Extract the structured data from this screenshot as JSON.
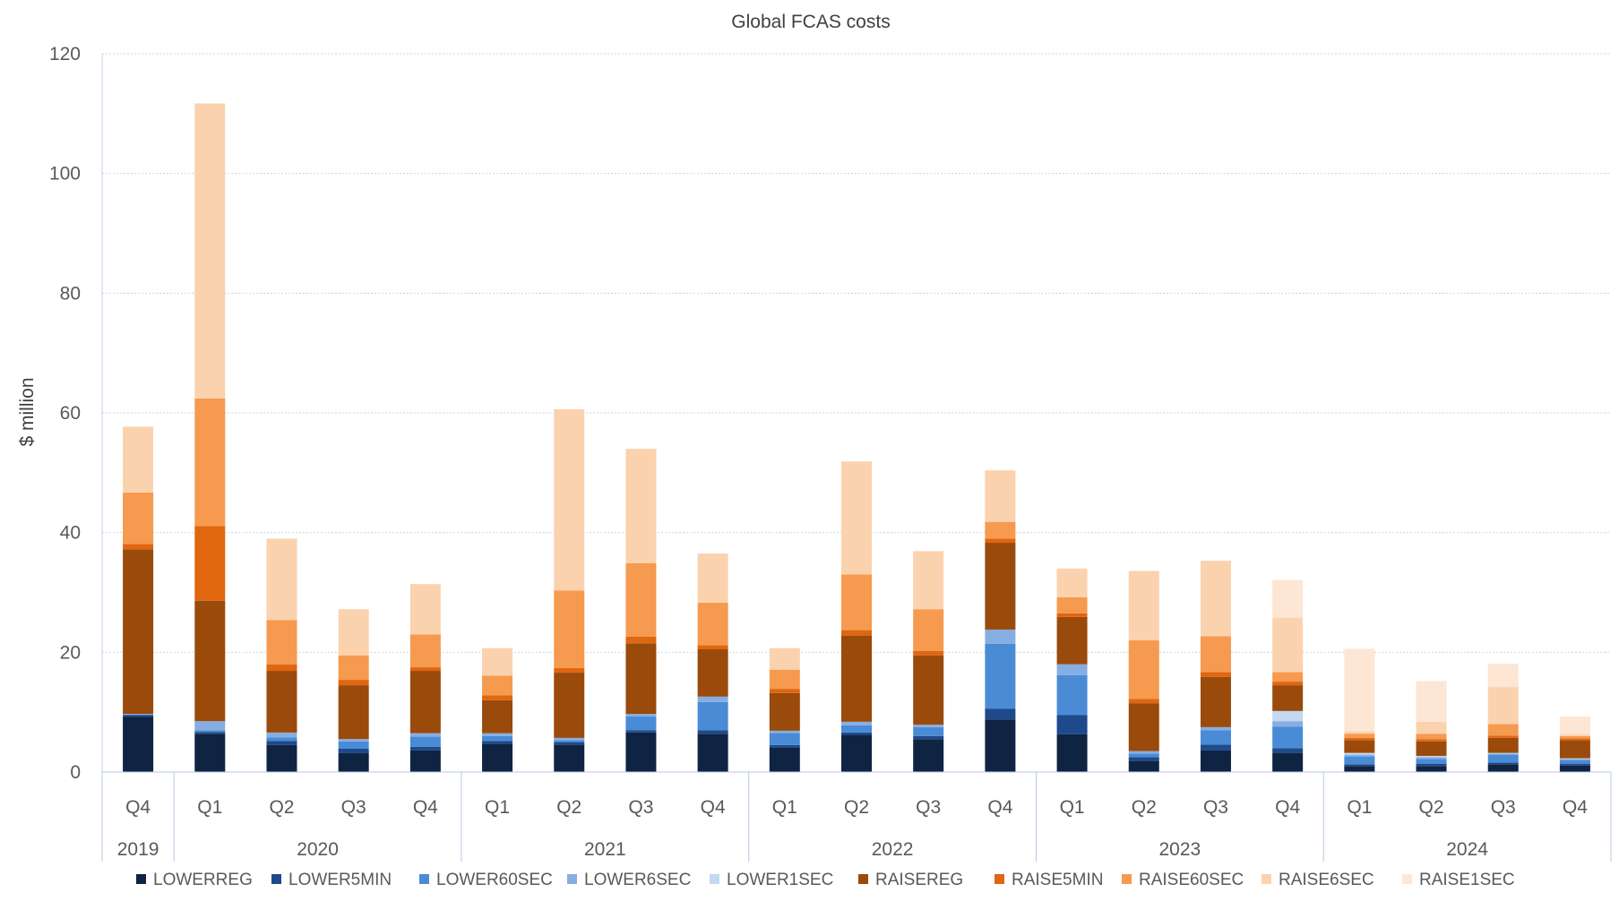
{
  "chart_data": {
    "type": "bar",
    "stacked": true,
    "title": "Global FCAS costs",
    "xlabel": "",
    "ylabel": "$ million",
    "ylim": [
      0,
      120
    ],
    "yticks": [
      0,
      20,
      40,
      60,
      80,
      100,
      120
    ],
    "grid": true,
    "legend_position": "bottom",
    "categories": [
      "Q4",
      "Q1",
      "Q2",
      "Q3",
      "Q4",
      "Q1",
      "Q2",
      "Q3",
      "Q4",
      "Q1",
      "Q2",
      "Q3",
      "Q4",
      "Q1",
      "Q2",
      "Q3",
      "Q4",
      "Q1",
      "Q2",
      "Q3",
      "Q4"
    ],
    "years": [
      {
        "label": "2019",
        "count": 1
      },
      {
        "label": "2020",
        "count": 4
      },
      {
        "label": "2021",
        "count": 4
      },
      {
        "label": "2022",
        "count": 4
      },
      {
        "label": "2023",
        "count": 4
      },
      {
        "label": "2024",
        "count": 4
      }
    ],
    "series": [
      {
        "name": "LOWERREG",
        "color": "#0f2442",
        "values": [
          9.2,
          6.4,
          4.5,
          3.2,
          3.6,
          4.7,
          4.6,
          6.6,
          6.4,
          4.1,
          6.2,
          5.5,
          8.8,
          6.3,
          1.9,
          3.6,
          3.2,
          1.0,
          1.0,
          1.3,
          1.1
        ]
      },
      {
        "name": "LOWER5MIN",
        "color": "#1e4a8c",
        "values": [
          0.3,
          0.3,
          0.7,
          0.7,
          0.6,
          0.5,
          0.4,
          0.4,
          0.6,
          0.4,
          0.4,
          0.5,
          1.8,
          3.2,
          0.6,
          1.0,
          0.8,
          0.3,
          0.4,
          0.3,
          0.3
        ]
      },
      {
        "name": "LOWER60SEC",
        "color": "#4a8bd6",
        "values": [
          0.1,
          0.3,
          0.6,
          1.2,
          1.7,
          0.8,
          0.3,
          2.3,
          4.7,
          2.0,
          1.2,
          1.5,
          10.8,
          6.7,
          0.6,
          2.4,
          3.6,
          1.3,
          0.8,
          1.3,
          0.6
        ]
      },
      {
        "name": "LOWER6SEC",
        "color": "#86aee2",
        "values": [
          0.1,
          1.5,
          0.8,
          0.4,
          0.6,
          0.5,
          0.4,
          0.4,
          0.9,
          0.4,
          0.6,
          0.4,
          2.4,
          1.8,
          0.4,
          0.5,
          0.9,
          0.3,
          0.3,
          0.2,
          0.2
        ]
      },
      {
        "name": "LOWER1SEC",
        "color": "#c4d8f2",
        "values": [
          0,
          0,
          0,
          0,
          0,
          0,
          0,
          0,
          0,
          0,
          0,
          0,
          0,
          0,
          0,
          0,
          1.7,
          0.3,
          0.2,
          0.1,
          0.1
        ]
      },
      {
        "name": "RAISEREG",
        "color": "#9a4a0b",
        "values": [
          27.5,
          20.1,
          10.3,
          9.0,
          10.4,
          5.5,
          10.9,
          11.8,
          7.9,
          6.3,
          14.4,
          11.6,
          14.5,
          7.9,
          8.0,
          8.4,
          4.3,
          2.1,
          2.4,
          2.5,
          3.0
        ]
      },
      {
        "name": "RAISE5MIN",
        "color": "#e0660f",
        "values": [
          0.9,
          12.5,
          1.1,
          0.9,
          0.6,
          0.8,
          0.8,
          1.1,
          0.7,
          0.7,
          0.9,
          0.7,
          0.7,
          0.6,
          0.7,
          0.8,
          0.6,
          0.4,
          0.4,
          0.4,
          0.3
        ]
      },
      {
        "name": "RAISE60SEC",
        "color": "#f59a4f",
        "values": [
          8.6,
          21.3,
          7.4,
          4.1,
          5.5,
          3.3,
          12.9,
          12.3,
          7.1,
          3.2,
          9.3,
          7.0,
          2.8,
          2.7,
          9.8,
          6.0,
          1.6,
          0.7,
          0.9,
          1.9,
          0.4
        ]
      },
      {
        "name": "RAISE6SEC",
        "color": "#fbd2ae",
        "values": [
          11.0,
          49.3,
          13.6,
          7.7,
          8.4,
          4.6,
          30.3,
          19.1,
          8.2,
          3.6,
          18.9,
          9.7,
          8.6,
          4.8,
          11.6,
          12.6,
          9.1,
          0.4,
          2.0,
          6.2,
          0.3
        ]
      },
      {
        "name": "RAISE1SEC",
        "color": "#fde6d4",
        "values": [
          0,
          0,
          0,
          0,
          0,
          0,
          0,
          0,
          0,
          0,
          0,
          0,
          0,
          0,
          0,
          0,
          6.3,
          13.8,
          6.8,
          3.9,
          3.0
        ]
      }
    ]
  }
}
